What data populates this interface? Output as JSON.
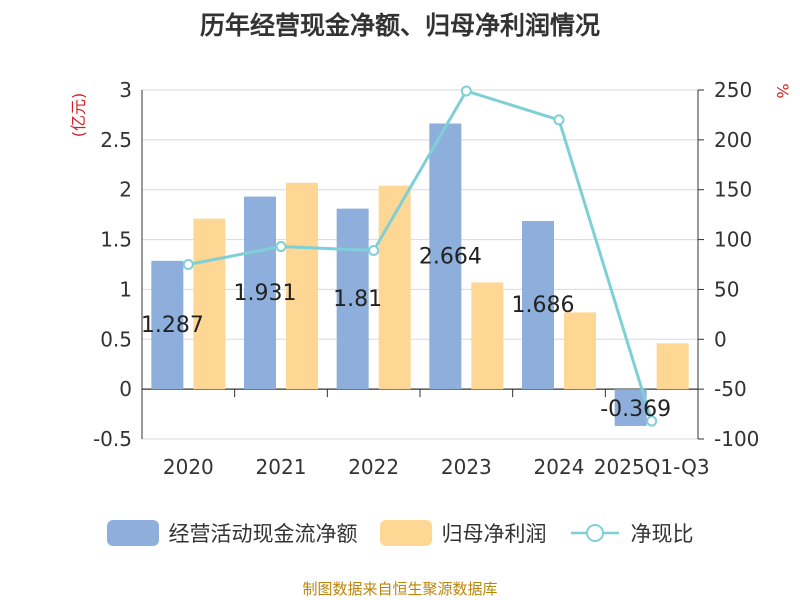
{
  "title": "历年经营现金净额、归母净利润情况",
  "source_note": "制图数据来自恒生聚源数据库",
  "colors": {
    "cash": "#8eaedb",
    "profit": "#fed794",
    "ratio": "#7fd0d6",
    "axis": "#333333",
    "grid": "#d9d9d9",
    "unit": "#d42020"
  },
  "legend": [
    {
      "label": "经营活动现金流净额",
      "type": "bar",
      "color": "#8eaedb"
    },
    {
      "label": "归母净利润",
      "type": "bar",
      "color": "#fed794"
    },
    {
      "label": "净现比",
      "type": "line",
      "color": "#7fd0d6"
    }
  ],
  "chart_data": {
    "type": "bar",
    "title": "历年经营现金净额、归母净利润情况",
    "categories": [
      "2020",
      "2021",
      "2022",
      "2023",
      "2024",
      "2025Q1-Q3"
    ],
    "series": [
      {
        "name": "经营活动现金流净额",
        "type": "bar",
        "axis": "left",
        "values": [
          1.287,
          1.931,
          1.81,
          2.664,
          1.686,
          -0.369
        ],
        "labels": [
          "1.287",
          "1.931",
          "1.81",
          "2.664",
          "1.686",
          "-0.369"
        ]
      },
      {
        "name": "归母净利润",
        "type": "bar",
        "axis": "left",
        "values": [
          1.71,
          2.07,
          2.04,
          1.07,
          0.77,
          0.46
        ]
      },
      {
        "name": "净现比",
        "type": "line",
        "axis": "right",
        "values": [
          75,
          93,
          89,
          249,
          220,
          -82
        ]
      }
    ],
    "y_left": {
      "label": "(亿元)",
      "min": -0.5,
      "max": 3,
      "ticks": [
        "-0.5",
        "0",
        "0.5",
        "1",
        "1.5",
        "2",
        "2.5",
        "3"
      ]
    },
    "y_right": {
      "label": "%",
      "min": -100,
      "max": 250,
      "ticks": [
        "-100",
        "-50",
        "0",
        "50",
        "100",
        "150",
        "200",
        "250"
      ]
    },
    "grid": true,
    "legend_position": "bottom"
  }
}
